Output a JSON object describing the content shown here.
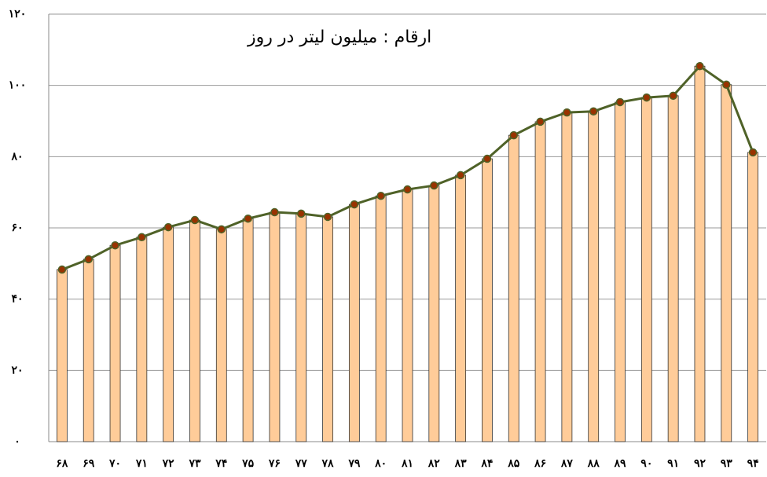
{
  "chart_data": {
    "type": "bar",
    "annotation": "ارقام : میلیون لیتر در روز",
    "categories": [
      "۶۸",
      "۶۹",
      "۷۰",
      "۷۱",
      "۷۲",
      "۷۳",
      "۷۴",
      "۷۵",
      "۷۶",
      "۷۷",
      "۷۸",
      "۷۹",
      "۸۰",
      "۸۱",
      "۸۲",
      "۸۳",
      "۸۴",
      "۸۵",
      "۸۶",
      "۸۷",
      "۸۸",
      "۸۹",
      "۹۰",
      "۹۱",
      "۹۲",
      "۹۳",
      "۹۴"
    ],
    "values": [
      48.3,
      51.2,
      55.1,
      57.4,
      60.2,
      62.2,
      59.6,
      62.6,
      64.4,
      64.0,
      63.1,
      66.6,
      69.0,
      70.8,
      71.9,
      74.8,
      79.4,
      86.0,
      89.8,
      92.4,
      92.7,
      95.3,
      96.6,
      97.1,
      105.4,
      100.2,
      81.2
    ],
    "color": "#ffcc99",
    "line": true,
    "line_color": "#4f6228",
    "marker_color": "#993300",
    "ylim": [
      0,
      120
    ],
    "yticks": [
      {
        "value": 0,
        "label": "۰"
      },
      {
        "value": 20,
        "label": "۲۰"
      },
      {
        "value": 40,
        "label": "۴۰"
      },
      {
        "value": 60,
        "label": "۶۰"
      },
      {
        "value": 80,
        "label": "۸۰"
      },
      {
        "value": 100,
        "label": "۱۰۰"
      },
      {
        "value": 120,
        "label": "۱۲۰"
      }
    ],
    "grid": true
  }
}
